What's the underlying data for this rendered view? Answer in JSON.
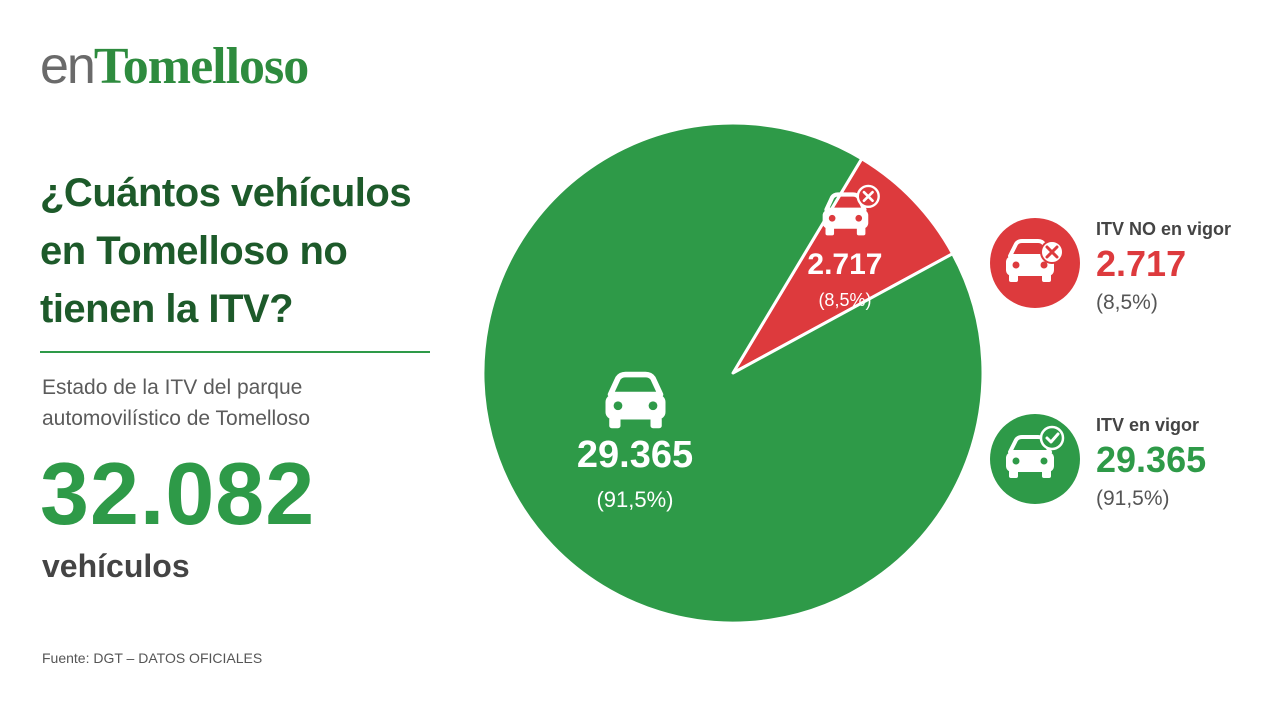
{
  "brand": {
    "prefix": "en",
    "name": "Tomelloso"
  },
  "header": {
    "title_lines": [
      "¿Cuántos vehículos",
      "en Tomelloso no",
      "tienen la ITV?"
    ],
    "subtitle_lines": [
      "Estado de la ITV del parque",
      "automovilístico de Tomelloso"
    ]
  },
  "summary": {
    "total": "32.082",
    "unit": "vehículos"
  },
  "source": "Fuente: DGT – DATOS OFICIALES",
  "colors": {
    "green": "#2e9a48",
    "red": "#dd3a3d",
    "dark_green": "#1d5a2a",
    "brand_green": "#2e8b3e"
  },
  "chart_data": {
    "type": "pie",
    "total": 32082,
    "slices": [
      {
        "name": "ITV NO en vigor",
        "value": 2717,
        "value_label": "2.717",
        "pct_label": "(8,5%)",
        "color": "#dd3a3d",
        "icon": "car-x-icon"
      },
      {
        "name": "ITV en vigor",
        "value": 29365,
        "value_label": "29.365",
        "pct_label": "(91,5%)",
        "color": "#2e9a48",
        "icon": "car-check-icon"
      }
    ],
    "legend_position": "right"
  }
}
